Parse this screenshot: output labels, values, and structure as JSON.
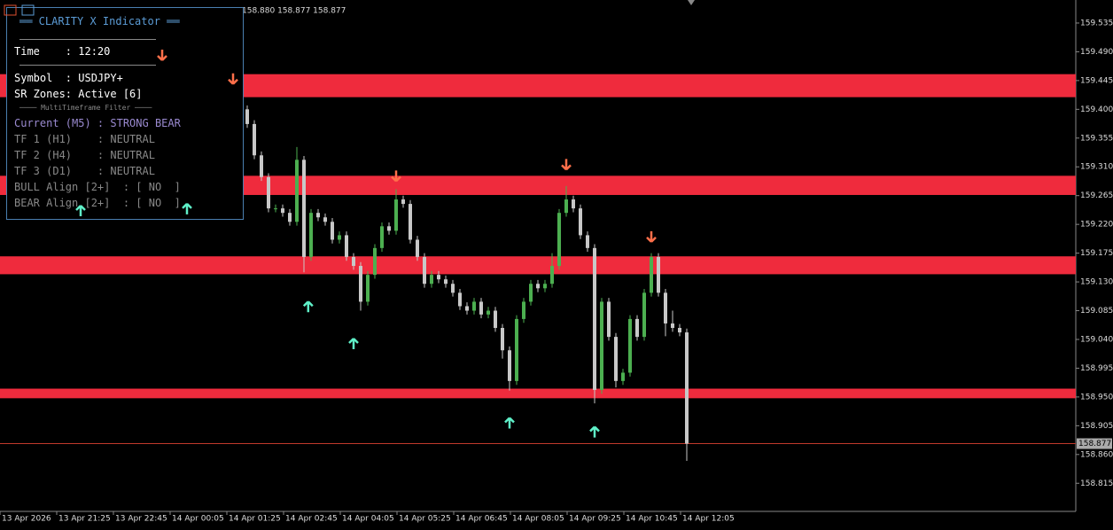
{
  "header_values": "158.880 158.877 158.877",
  "panel": {
    "title": "══ CLARITY X Indicator ══",
    "time": "Time    : 12:20",
    "symbol": "Symbol  : USDJPY+",
    "sr_zones": "SR Zones: Active [6]",
    "filter_title": "──── MultiTimeframe Filter ────",
    "current": "Current (M5) : STRONG BEAR",
    "tf1": "TF 1 (H1)    : NEUTRAL",
    "tf2": "TF 2 (H4)    : NEUTRAL",
    "tf3": "TF 3 (D1)    : NEUTRAL",
    "bull_align": "BULL Align [2+]  : [ NO  ]",
    "bear_align": "BEAR Align [2+]  : [ NO  ]"
  },
  "chart_data": {
    "type": "candlestick",
    "x": [
      "13 Apr 2026",
      "13 Apr 21:25",
      "13 Apr 22:45",
      "14 Apr 00:05",
      "14 Apr 01:25",
      "14 Apr 02:45",
      "14 Apr 04:05",
      "14 Apr 05:25",
      "14 Apr 06:45",
      "14 Apr 08:05",
      "14 Apr 09:25",
      "14 Apr 10:45",
      "14 Apr 12:05"
    ],
    "ylim": [
      158.771,
      159.571
    ],
    "yticks": [
      159.535,
      {
        "value": 159.49,
        "label": "159.490"
      },
      159.445,
      {
        "value": 159.4,
        "label": "159.400"
      },
      159.355,
      {
        "value": 159.31,
        "label": "159.310"
      },
      159.265,
      {
        "value": 159.22,
        "label": "159.220"
      },
      159.175,
      {
        "value": 159.13,
        "label": "159.130"
      },
      159.085,
      {
        "value": 159.04,
        "label": "159.040"
      },
      158.995,
      {
        "value": 158.95,
        "label": "158.950"
      },
      158.905,
      {
        "value": 158.86,
        "label": "158.860"
      },
      158.815
    ],
    "bull_color": "#4caf50",
    "bear_color": "#c8c8c8",
    "zone_color": "#ef2b3d",
    "candles": [
      [
        159.4,
        159.406,
        159.371,
        159.377
      ],
      [
        159.377,
        159.383,
        159.322,
        159.328
      ],
      [
        159.328,
        159.334,
        159.288,
        159.294
      ],
      [
        159.294,
        159.3,
        159.239,
        159.245
      ],
      [
        159.245,
        159.251,
        159.239,
        159.245
      ],
      [
        159.245,
        159.251,
        159.232,
        159.238
      ],
      [
        159.238,
        159.244,
        159.218,
        159.224
      ],
      [
        159.224,
        159.341,
        159.218,
        159.321
      ],
      [
        159.321,
        159.327,
        159.145,
        159.169
      ],
      [
        159.169,
        159.244,
        159.163,
        159.238
      ],
      [
        159.238,
        159.244,
        159.225,
        159.231
      ],
      [
        159.231,
        159.237,
        159.218,
        159.224
      ],
      [
        159.224,
        159.23,
        159.19,
        159.196
      ],
      [
        159.196,
        159.209,
        159.19,
        159.203
      ],
      [
        159.203,
        159.209,
        159.163,
        159.169
      ],
      [
        159.169,
        159.175,
        159.149,
        159.155
      ],
      [
        159.155,
        159.161,
        159.085,
        159.099
      ],
      [
        159.099,
        159.147,
        159.093,
        159.141
      ],
      [
        159.141,
        159.189,
        159.135,
        159.183
      ],
      [
        159.183,
        159.223,
        159.177,
        159.217
      ],
      [
        159.217,
        159.223,
        159.204,
        159.21
      ],
      [
        159.21,
        159.275,
        159.204,
        159.259
      ],
      [
        159.259,
        159.265,
        159.246,
        159.252
      ],
      [
        159.252,
        159.258,
        159.19,
        159.196
      ],
      [
        159.196,
        159.202,
        159.163,
        159.169
      ],
      [
        159.169,
        159.175,
        159.121,
        159.127
      ],
      [
        159.127,
        159.147,
        159.121,
        159.141
      ],
      [
        159.141,
        159.147,
        159.128,
        159.134
      ],
      [
        159.134,
        159.14,
        159.121,
        159.127
      ],
      [
        159.127,
        159.133,
        159.107,
        159.113
      ],
      [
        159.113,
        159.119,
        159.086,
        159.092
      ],
      [
        159.092,
        159.098,
        159.079,
        159.085
      ],
      [
        159.085,
        159.105,
        159.079,
        159.099
      ],
      [
        159.099,
        159.105,
        159.073,
        159.079
      ],
      [
        159.079,
        159.091,
        159.073,
        159.085
      ],
      [
        159.085,
        159.091,
        159.052,
        159.058
      ],
      [
        159.058,
        159.064,
        159.01,
        159.023
      ],
      [
        159.023,
        159.029,
        158.96,
        158.975
      ],
      [
        158.975,
        159.078,
        158.969,
        159.072
      ],
      [
        159.072,
        159.105,
        159.066,
        159.099
      ],
      [
        159.099,
        159.133,
        159.093,
        159.127
      ],
      [
        159.127,
        159.133,
        159.114,
        159.12
      ],
      [
        159.12,
        159.133,
        159.114,
        159.127
      ],
      [
        159.127,
        159.175,
        159.121,
        159.155
      ],
      [
        159.155,
        159.244,
        159.149,
        159.238
      ],
      [
        159.238,
        159.28,
        159.232,
        159.259
      ],
      [
        159.259,
        159.265,
        159.239,
        159.245
      ],
      [
        159.245,
        159.251,
        159.197,
        159.203
      ],
      [
        159.203,
        159.209,
        159.177,
        159.183
      ],
      [
        159.183,
        159.189,
        158.94,
        158.961
      ],
      [
        158.961,
        159.105,
        158.955,
        159.099
      ],
      [
        159.099,
        159.105,
        159.038,
        159.044
      ],
      [
        159.044,
        159.05,
        158.965,
        158.975
      ],
      [
        158.975,
        158.994,
        158.969,
        158.988
      ],
      [
        158.988,
        159.078,
        158.982,
        159.072
      ],
      [
        159.072,
        159.078,
        159.038,
        159.044
      ],
      [
        159.044,
        159.119,
        159.038,
        159.113
      ],
      [
        159.113,
        159.175,
        159.107,
        159.169
      ],
      [
        159.169,
        159.175,
        159.107,
        159.113
      ],
      [
        159.113,
        159.119,
        159.045,
        159.065
      ],
      [
        159.065,
        159.085,
        159.052,
        159.058
      ],
      [
        159.058,
        159.064,
        159.045,
        159.051
      ],
      [
        159.051,
        159.057,
        158.85,
        158.877
      ]
    ],
    "zones": [
      [
        159.455,
        159.419
      ],
      [
        159.296,
        159.266
      ],
      [
        159.17,
        159.142
      ],
      [
        158.963,
        158.948
      ]
    ],
    "current_price": 158.877,
    "sell_signals": [
      {
        "bar": -12,
        "price": 159.485
      },
      {
        "bar": -2,
        "price": 159.448
      },
      {
        "bar": 21,
        "price": 159.296
      },
      {
        "bar": 45,
        "price": 159.314
      },
      {
        "bar": 57,
        "price": 159.201
      }
    ],
    "buy_signals": [
      {
        "bar": -23.5,
        "price": 159.241
      },
      {
        "bar": -8.5,
        "price": 159.244
      },
      {
        "bar": 8.6,
        "price": 159.091
      },
      {
        "bar": 15,
        "price": 159.033
      },
      {
        "bar": 37,
        "price": 158.909
      },
      {
        "bar": 49,
        "price": 158.895
      }
    ],
    "sell_color": "#ff6f4a",
    "buy_color": "#5ff0c8"
  }
}
